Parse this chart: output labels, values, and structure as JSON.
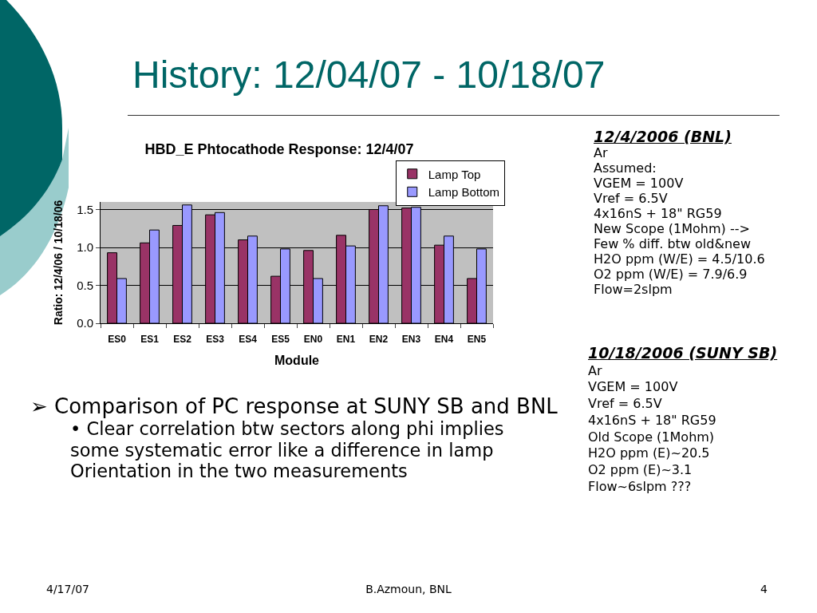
{
  "chart_data": {
    "type": "bar",
    "title": "History: 12/04/07 - 10/18/07",
    "subtitle": "HBD_E Phtocathode Response: 12/4/07",
    "xlabel": "Module",
    "ylabel": "Ratio: 12/4/06 / 10/18/06",
    "categories": [
      "ES0",
      "ES1",
      "ES2",
      "ES3",
      "ES4",
      "ES5",
      "EN0",
      "EN1",
      "EN2",
      "EN3",
      "EN4",
      "EN5"
    ],
    "series": [
      {
        "name": "Lamp Top",
        "color": "#993366",
        "values": [
          0.93,
          1.06,
          1.29,
          1.43,
          1.1,
          0.62,
          0.96,
          1.16,
          1.5,
          1.52,
          1.03,
          0.59
        ]
      },
      {
        "name": "Lamp Bottom",
        "color": "#9999ff",
        "values": [
          0.59,
          1.23,
          1.56,
          1.46,
          1.15,
          0.98,
          0.59,
          1.02,
          1.55,
          1.53,
          1.15,
          0.98
        ]
      }
    ],
    "ylim": [
      0,
      1.6
    ],
    "yticks": [
      {
        "value": 0,
        "label": "0.0"
      },
      0.5,
      {
        "value": 1,
        "label": "1.0"
      },
      1.5
    ],
    "grid": "y",
    "legend": "top right",
    "annotations": [
      "12/4/2006 (BNL)\nAr\nAssumed:\nVGEM = 100V\nVref = 6.5V\n4x16nS + 18\" RG59\nNew Scope (1Mohm) -->\nFew % diff. btw old&new\nH2O ppm (W/E) = 4.5/10.6\nO2 ppm (W/E) = 7.9/6.9\nFlow=2slpm",
      "10/18/2006 (SUNY SB)\nAr\nVGEM = 100V\nVref = 6.5V\n4x16nS + 18\" RG59\nOld Scope (1Mohm)\nH2O ppm (E)~20.5\nO2 ppm (E)~3.1\nFlow~6slpm ???",
      "➢ Comparison of PC response at SUNY SB and BNL",
      "• Clear correlation btw sectors along phi implies some systematic error like a difference in lamp Orientation in the two measurements",
      "4/17/07",
      "B.Azmoun, BNL",
      "4"
    ]
  }
}
